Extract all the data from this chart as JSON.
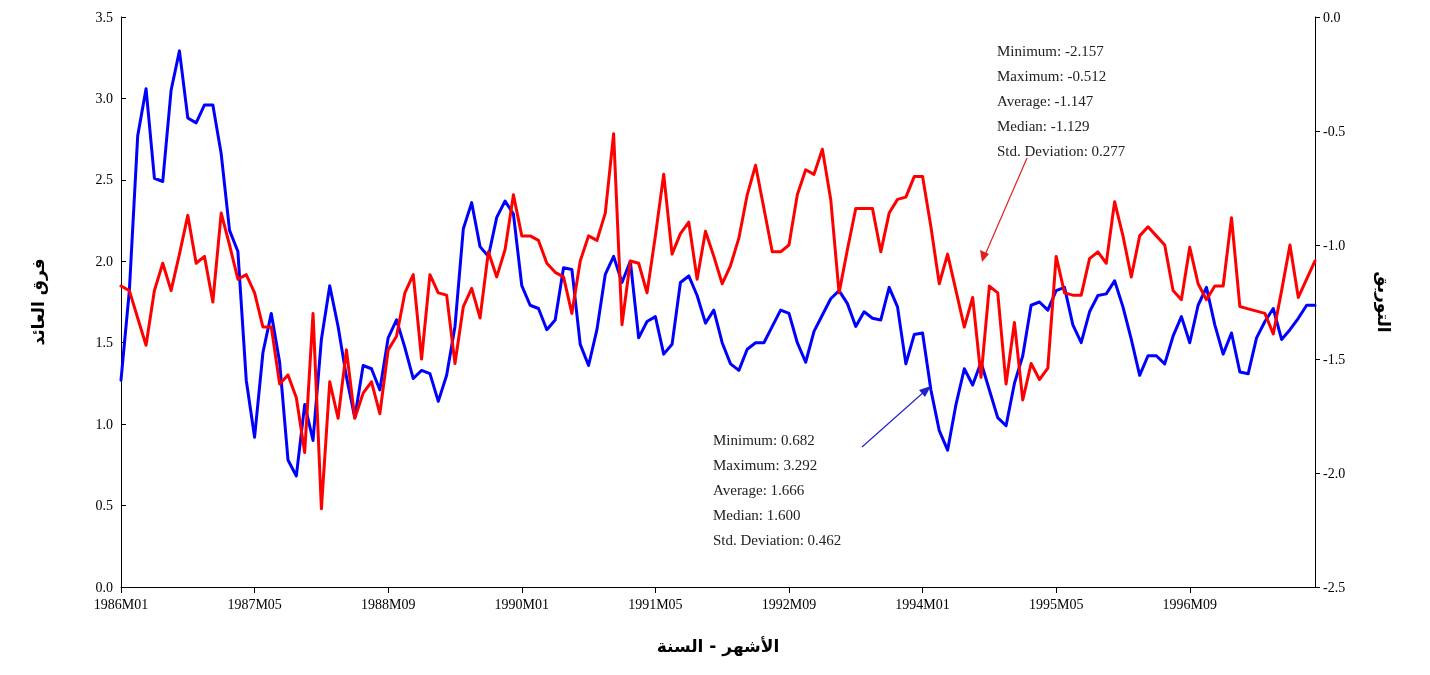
{
  "chart_data": {
    "type": "line",
    "xlabel": "الأشهر - السنة",
    "ylabel": "فرق العائد",
    "y2label": "التوريق",
    "categories": [
      "1986M01",
      null,
      null,
      null,
      null,
      null,
      null,
      null,
      null,
      null,
      null,
      null,
      null,
      null,
      null,
      null,
      "1987M05",
      null,
      null,
      null,
      null,
      null,
      null,
      null,
      null,
      null,
      null,
      null,
      null,
      null,
      null,
      null,
      "1988M09",
      null,
      null,
      null,
      null,
      null,
      null,
      null,
      null,
      null,
      null,
      null,
      null,
      null,
      null,
      null,
      "1990M01",
      null,
      null,
      null,
      null,
      null,
      null,
      null,
      null,
      null,
      null,
      null,
      null,
      null,
      null,
      null,
      "1991M05",
      null,
      null,
      null,
      null,
      null,
      null,
      null,
      null,
      null,
      null,
      null,
      null,
      null,
      null,
      null,
      "1992M09",
      null,
      null,
      null,
      null,
      null,
      null,
      null,
      null,
      null,
      null,
      null,
      null,
      null,
      null,
      null,
      "1994M01",
      null,
      null,
      null,
      null,
      null,
      null,
      null,
      null,
      null,
      null,
      null,
      null,
      null,
      null,
      null,
      "1995M05",
      null,
      null,
      null,
      null,
      null,
      null,
      null,
      null,
      null,
      null,
      null,
      null,
      null,
      null,
      null,
      "1996M09",
      null,
      null,
      null,
      null,
      null,
      null,
      null,
      null,
      null,
      null,
      null,
      null,
      null,
      null,
      null
    ],
    "series": [
      {
        "color": "#0000ff",
        "values": [
          1.27,
          1.82,
          2.77,
          3.06,
          2.51,
          2.49,
          3.05,
          3.292,
          2.88,
          2.85,
          2.96,
          2.96,
          2.66,
          2.19,
          2.06,
          1.27,
          0.92,
          1.44,
          1.68,
          1.38,
          0.78,
          0.682,
          1.12,
          0.9,
          1.52,
          1.85,
          1.6,
          1.29,
          1.04,
          1.36,
          1.34,
          1.21,
          1.53,
          1.64,
          1.47,
          1.28,
          1.33,
          1.31,
          1.14,
          1.3,
          1.6,
          2.2,
          2.36,
          2.09,
          2.03,
          2.27,
          2.37,
          2.29,
          1.85,
          1.73,
          1.71,
          1.58,
          1.64,
          1.96,
          1.95,
          1.49,
          1.36,
          1.58,
          1.92,
          2.03,
          1.87,
          2.0,
          1.53,
          1.63,
          1.66,
          1.43,
          1.49,
          1.87,
          1.91,
          1.79,
          1.62,
          1.7,
          1.5,
          1.37,
          1.33,
          1.46,
          1.5,
          1.5,
          1.6,
          1.7,
          1.68,
          1.5,
          1.38,
          1.57,
          1.67,
          1.77,
          1.82,
          1.74,
          1.6,
          1.69,
          1.65,
          1.64,
          1.84,
          1.72,
          1.37,
          1.55,
          1.56,
          1.21,
          0.96,
          0.84,
          1.12,
          1.34,
          1.24,
          1.38,
          1.21,
          1.04,
          0.99,
          1.25,
          1.42,
          1.73,
          1.75,
          1.7,
          1.82,
          1.84,
          1.61,
          1.5,
          1.69,
          1.79,
          1.8,
          1.88,
          1.72,
          1.52,
          1.3,
          1.42,
          1.42,
          1.37,
          1.54,
          1.66,
          1.5,
          1.73,
          1.84,
          1.61,
          1.43,
          1.56,
          1.32,
          1.31,
          1.53,
          1.63,
          1.71,
          1.52,
          1.58,
          1.65,
          1.73,
          1.73
        ]
      },
      {
        "color": "#ff0000",
        "axis": "y2",
        "values": [
          -1.18,
          -1.2,
          -1.32,
          -1.44,
          -1.2,
          -1.08,
          -1.2,
          -1.04,
          -0.87,
          -1.08,
          -1.05,
          -1.25,
          -0.86,
          -1.0,
          -1.15,
          -1.13,
          -1.21,
          -1.36,
          -1.36,
          -1.61,
          -1.57,
          -1.67,
          -1.91,
          -1.3,
          -2.157,
          -1.6,
          -1.76,
          -1.46,
          -1.76,
          -1.65,
          -1.6,
          -1.74,
          -1.46,
          -1.4,
          -1.21,
          -1.13,
          -1.5,
          -1.13,
          -1.21,
          -1.22,
          -1.52,
          -1.27,
          -1.19,
          -1.32,
          -1.03,
          -1.14,
          -1.02,
          -0.78,
          -0.96,
          -0.96,
          -0.98,
          -1.08,
          -1.12,
          -1.14,
          -1.3,
          -1.07,
          -0.96,
          -0.98,
          -0.86,
          -0.512,
          -1.35,
          -1.07,
          -1.08,
          -1.21,
          -0.96,
          -0.69,
          -1.04,
          -0.95,
          -0.9,
          -1.15,
          -0.94,
          -1.05,
          -1.17,
          -1.09,
          -0.97,
          -0.78,
          -0.65,
          -0.84,
          -1.03,
          -1.03,
          -1.0,
          -0.78,
          -0.67,
          -0.69,
          -0.58,
          -0.8,
          -1.21,
          -1.02,
          -0.84,
          -0.84,
          -0.84,
          -1.03,
          -0.86,
          -0.8,
          -0.79,
          -0.7,
          -0.7,
          -0.92,
          -1.17,
          -1.04,
          -1.2,
          -1.36,
          -1.23,
          -1.58,
          -1.18,
          -1.21,
          -1.61,
          -1.34,
          -1.68,
          -1.52,
          -1.59,
          -1.54,
          -1.05,
          -1.21,
          -1.22,
          -1.22,
          -1.06,
          -1.03,
          -1.08,
          -0.81,
          -0.96,
          -1.14,
          -0.96,
          -0.92,
          -0.96,
          -1.0,
          -1.2,
          -1.24,
          -1.01,
          -1.17,
          -1.24,
          -1.18,
          -1.18,
          -0.88,
          -1.27,
          -1.28,
          -1.29,
          -1.3,
          -1.39,
          -1.2,
          -1.0,
          -1.23,
          -1.15,
          -1.07
        ]
      }
    ],
    "ylim": [
      0,
      3.5
    ],
    "yticks": [
      {
        "value": 0,
        "label": "0.0"
      },
      0.5,
      {
        "value": 1,
        "label": "1.0"
      },
      1.5,
      {
        "value": 2,
        "label": "2.0"
      },
      2.5,
      {
        "value": 3,
        "label": "3.0"
      },
      3.5
    ],
    "y2lim": [
      -2.5,
      0
    ],
    "y2ticks": [
      -2.5,
      {
        "value": -2,
        "label": "-2.0"
      },
      -1.5,
      {
        "value": -1,
        "label": "-1.0"
      },
      -0.5,
      {
        "value": 0,
        "label": "0.0"
      }
    ],
    "annotations": [
      "Minimum: 0.682\nMaximum: 3.292\nAverage: 1.666\nMedian: 1.600\nStd. Deviation: 0.462",
      "Minimum: -2.157\nMaximum: -0.512\nAverage: -1.147\nMedian: -1.129\nStd. Deviation: 0.277"
    ],
    "marker": "none",
    "line_style": "solid",
    "grid": false
  }
}
